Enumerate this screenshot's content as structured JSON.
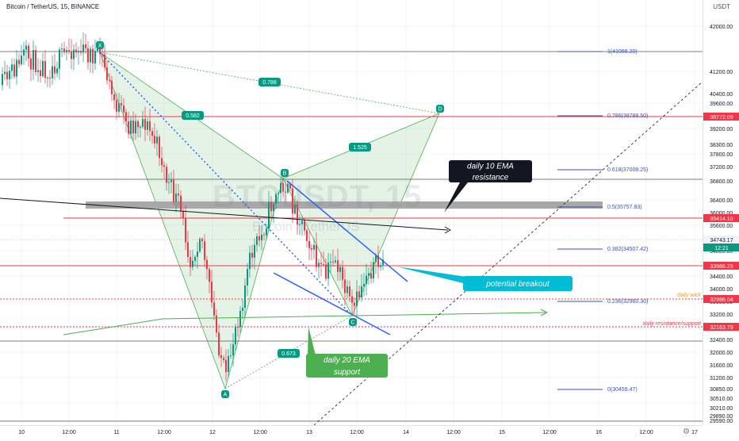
{
  "header": {
    "symbol": "Bitcoin / TetherUS, 15, BINANCE",
    "currency": "USDT"
  },
  "watermark": {
    "ticker": "BTCUSDT, 15",
    "name": "Bitcoin / TetherUS"
  },
  "axis": {
    "y_ticks": [
      "42000.00",
      "41200.00",
      "40400.00",
      "39600.00",
      "39200.00",
      "38300.00",
      "37800.00",
      "37200.00",
      "36800.00",
      "36400.00",
      "36000.00",
      "35600.00",
      "35200.00",
      "34800.00",
      "34400.00",
      "34000.00",
      "33600.00",
      "33200.00",
      "32800.00",
      "32400.00",
      "32000.00",
      "31600.00",
      "31200.00",
      "30850.00",
      "30510.00",
      "30210.00",
      "29890.00",
      "29590.00"
    ],
    "x_ticks": [
      "10",
      "12:00",
      "11",
      "12:00",
      "12",
      "12:00",
      "13",
      "12:00",
      "14",
      "12:00",
      "15",
      "12:00",
      "16",
      "12:00",
      "17"
    ]
  },
  "price_labels": [
    {
      "text": "38772.09",
      "kind": "red"
    },
    {
      "text": "35414.10",
      "kind": "red"
    },
    {
      "text": "34743.17",
      "kind": "grey"
    },
    {
      "text": "12:21",
      "kind": "teal"
    },
    {
      "text": "33986.29",
      "kind": "red"
    },
    {
      "text": "32986.04",
      "kind": "red"
    },
    {
      "text": "32163.79",
      "kind": "red"
    }
  ],
  "fib_levels": [
    "1(41056.20)",
    "0.786(38788.50)",
    "0.618(37008.25)",
    "0.5(35757.83)",
    "0.382(34507.42)",
    "0.236(32960.30)",
    "0(30459.47)"
  ],
  "pattern": {
    "points": [
      "X",
      "A",
      "B",
      "C",
      "D"
    ],
    "ratios": [
      "0.788",
      "0.582",
      "1.525",
      "0.673"
    ]
  },
  "annotations": {
    "ema10": "daily 10 EMA\nresistance",
    "breakout": "potential breakout",
    "ema20": "daily 20 EMA\nsupport",
    "daily_wick": "daily wick",
    "daily_rs": "daily resistance/support"
  },
  "colors": {
    "red": "#f23645",
    "blue": "#2962ff",
    "teal": "#089981",
    "cyan": "#00bcd4",
    "green": "#4caf50",
    "dark": "#131722",
    "fib": "#3f51b5",
    "orange": "#f39c12"
  }
}
